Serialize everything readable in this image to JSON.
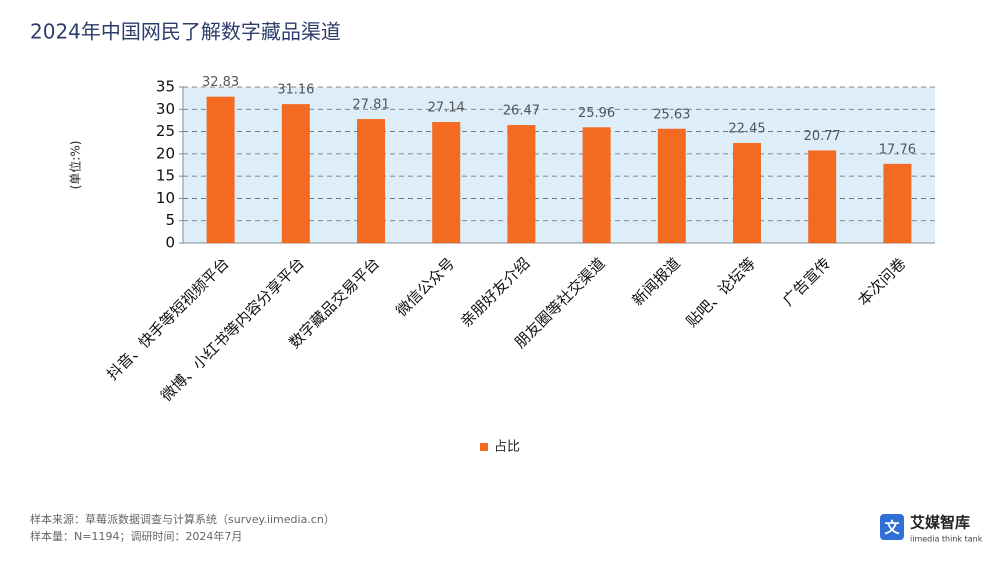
{
  "chart_data": {
    "type": "bar",
    "title": "2024年中国网民了解数字藏品渠道",
    "y_label": "(单位:%)",
    "categories": [
      "抖音、快手等短视频平台",
      "微博、小红书等内容分享平台",
      "数字藏品交易平台",
      "微信公众号",
      "亲朋好友介绍",
      "朋友圈等社交渠道",
      "新闻报道",
      "贴吧、论坛等",
      "广告宣传",
      "本次问卷"
    ],
    "series": [
      {
        "name": "占比",
        "color": "#f26b21",
        "values": [
          32.83,
          31.16,
          27.81,
          27.14,
          26.47,
          25.96,
          25.63,
          22.45,
          20.77,
          17.76
        ]
      }
    ],
    "ylim": [
      0,
      35
    ],
    "yticks": [
      0,
      5,
      10,
      15,
      20,
      25,
      30,
      35
    ],
    "grid": true,
    "legend": "bottom"
  },
  "source": "样本来源：草莓派数据调查与计算系统（survey.iimedia.cn）",
  "sample": "样本量：N=1194；调研时间：2024年7月",
  "logo": {
    "name": "艾媒智库",
    "tagline": "iimedia think tank"
  }
}
